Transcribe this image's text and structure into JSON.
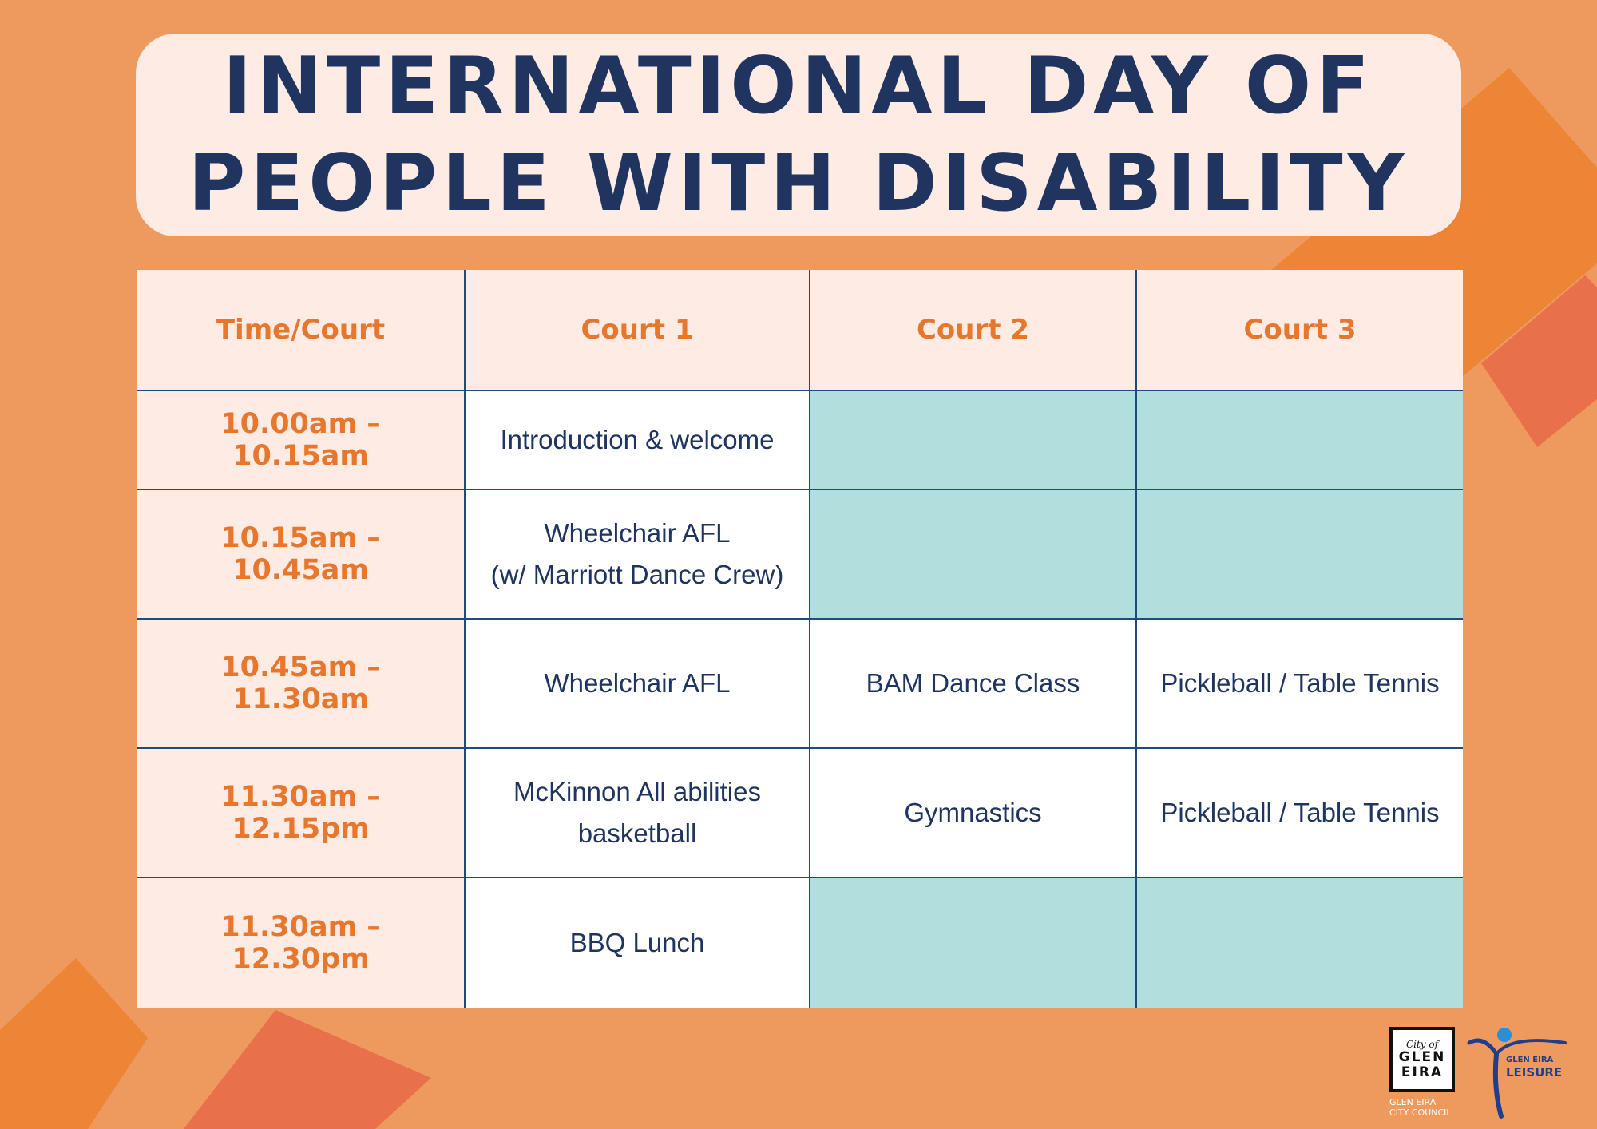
{
  "title": {
    "line1": "INTERNATIONAL DAY OF",
    "line2": "PEOPLE WITH DISABILITY"
  },
  "table": {
    "headers": [
      "Time/Court",
      "Court 1",
      "Court 2",
      "Court 3"
    ],
    "rows": [
      {
        "time": "10.00am – 10.15am",
        "court1": "Introduction & welcome",
        "court2": "",
        "court3": ""
      },
      {
        "time": "10.15am – 10.45am",
        "court1_line1": "Wheelchair AFL",
        "court1_line2": "(w/ Marriott Dance Crew)",
        "court2": "",
        "court3": ""
      },
      {
        "time": "10.45am – 11.30am",
        "court1": "Wheelchair AFL",
        "court2": "BAM Dance Class",
        "court3": "Pickleball / Table Tennis"
      },
      {
        "time": "11.30am – 12.15pm",
        "court1_line1": "McKinnon All abilities",
        "court1_line2": "basketball",
        "court2": "Gymnastics",
        "court3": "Pickleball / Table Tennis"
      },
      {
        "time": "11.30am – 12.30pm",
        "court1": "BBQ Lunch",
        "court2": "",
        "court3": ""
      }
    ]
  },
  "logos": {
    "city": {
      "line1": "City of",
      "line2": "GLEN",
      "line3": "EIRA",
      "caption1": "GLEN EIRA",
      "caption2": "CITY COUNCIL"
    },
    "leisure": {
      "line1": "GLEN EIRA",
      "line2": "LEISURE"
    }
  },
  "colors": {
    "background": "#ee9a5e",
    "title_panel": "#fdebe4",
    "title_text": "#1f3560",
    "header_text": "#e8772e",
    "empty_cell": "#b0dfde",
    "grid_line": "#1f4a7a",
    "accent_orange": "#ec8536",
    "accent_red": "#e8704a"
  }
}
